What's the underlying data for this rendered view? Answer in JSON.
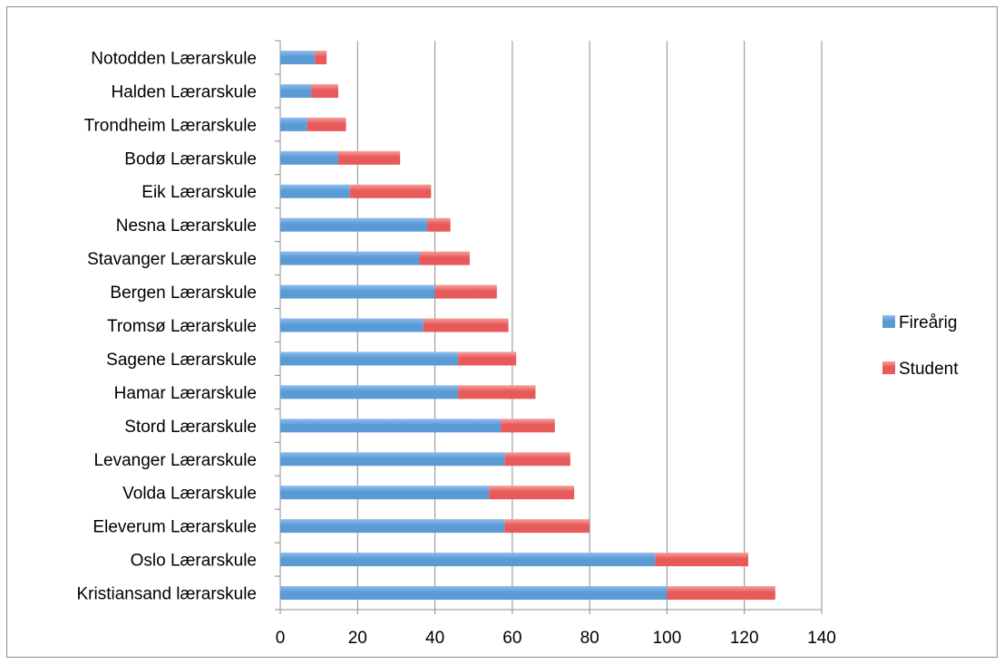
{
  "chart_data": {
    "type": "bar",
    "orientation": "horizontal",
    "stacked": true,
    "categories": [
      "Notodden Lærarskule",
      "Halden Lærarskule",
      "Trondheim Lærarskule",
      "Bodø Lærarskule",
      "Eik Lærarskule",
      "Nesna Lærarskule",
      "Stavanger Lærarskule",
      "Bergen Lærarskule",
      "Tromsø Lærarskule",
      "Sagene Lærarskule",
      "Hamar Lærarskule",
      "Stord Lærarskule",
      "Levanger Lærarskule",
      "Volda Lærarskule",
      "Eleverum Lærarskule",
      "Oslo Lærarskule",
      "Kristiansand lærarskule"
    ],
    "series": [
      {
        "name": "Fireårig",
        "color": "#5b9bd5",
        "values": [
          9,
          8,
          7,
          15,
          18,
          38,
          36,
          40,
          37,
          46,
          46,
          57,
          58,
          54,
          58,
          97,
          100
        ]
      },
      {
        "name": "Student",
        "color": "#e8595a",
        "values": [
          3,
          7,
          10,
          16,
          21,
          6,
          13,
          16,
          22,
          15,
          20,
          14,
          17,
          22,
          22,
          24,
          28
        ]
      }
    ],
    "xlim": [
      0,
      140
    ],
    "xticks": [
      "0",
      "20",
      "40",
      "60",
      "80",
      "100",
      "120",
      "140"
    ],
    "grid": true,
    "legend_position": "right",
    "title": "",
    "xlabel": "",
    "ylabel": ""
  }
}
